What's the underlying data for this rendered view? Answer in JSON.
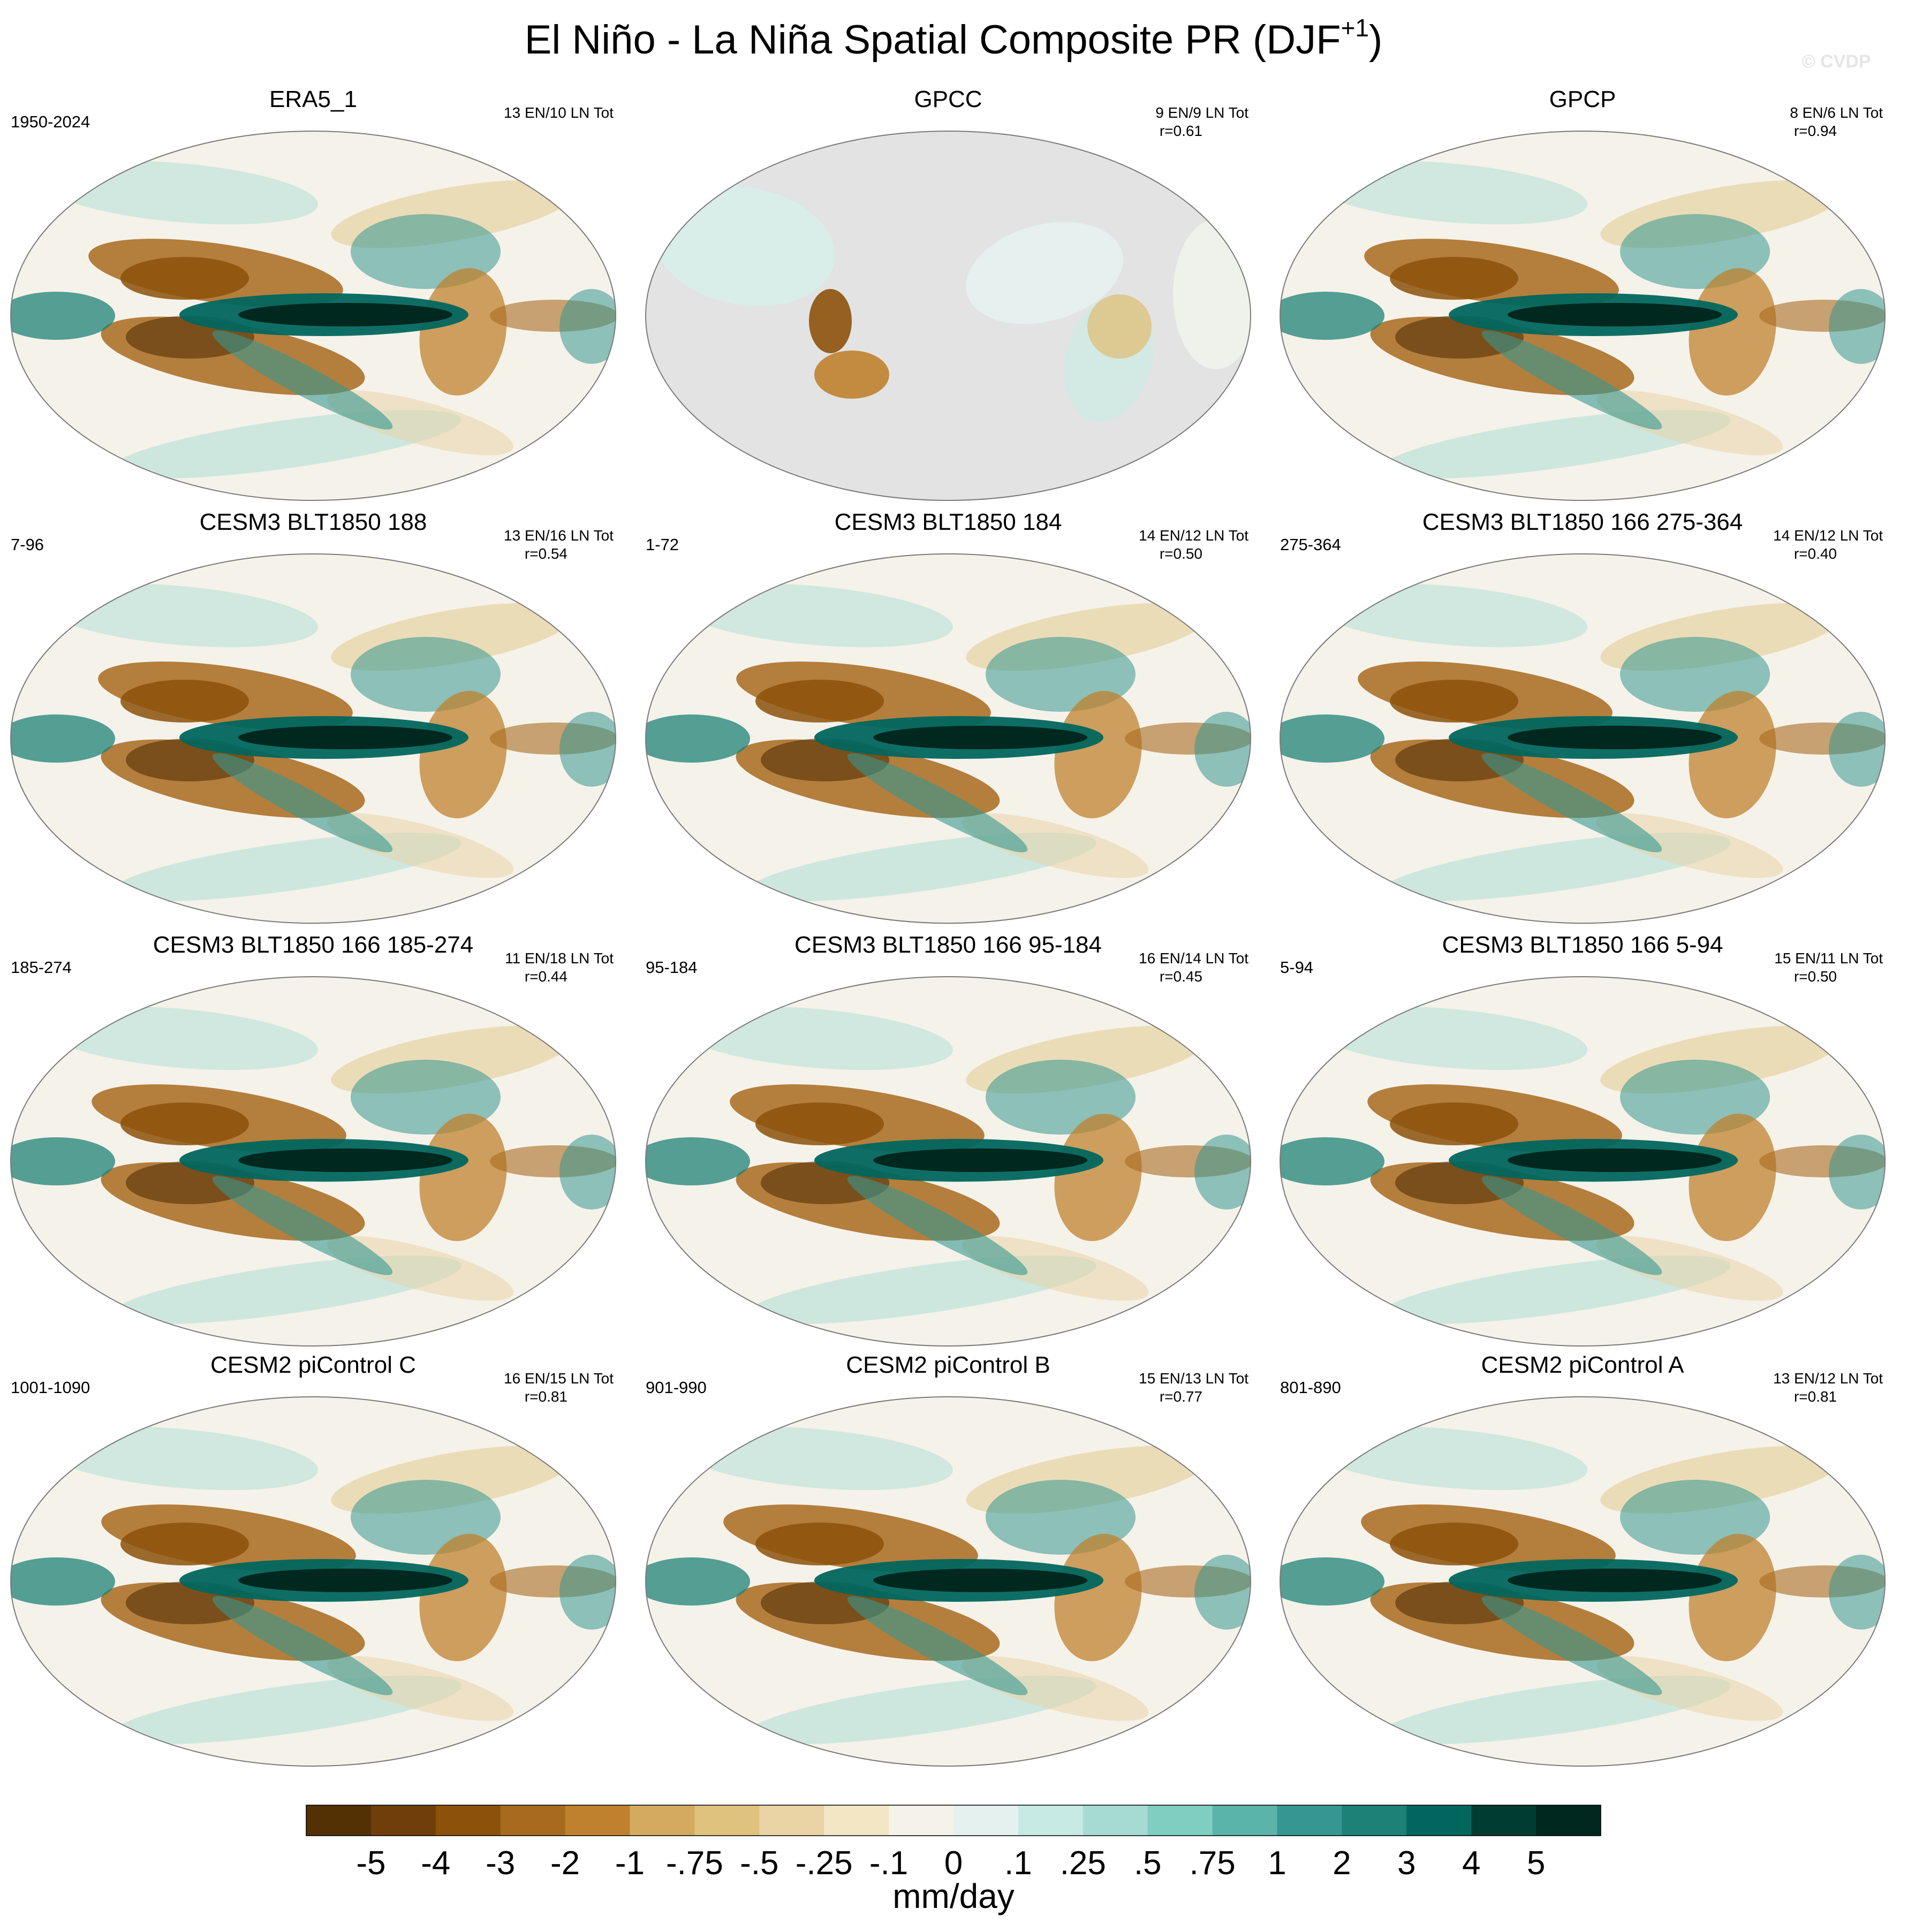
{
  "figure": {
    "title_main": "El Niño - La Niña Spatial Composite PR (DJF",
    "title_sup": "+1",
    "title_close": ")",
    "watermark": "© CVDP"
  },
  "chart_data": {
    "type": "heatmap",
    "title": "El Niño - La Niña Spatial Composite PR (DJF+1)",
    "variable": "PR",
    "season": "DJF+1",
    "units": "mm/day",
    "colorbar": {
      "label": "mm/day",
      "levels": [
        "-5",
        "-4",
        "-3",
        "-2",
        "-1",
        "-.75",
        "-.5",
        "-.25",
        "-.1",
        "0",
        ".1",
        ".25",
        ".5",
        ".75",
        "1",
        "2",
        "3",
        "4",
        "5"
      ],
      "colors": [
        "#543005",
        "#6f3e0a",
        "#8c510a",
        "#a86a1f",
        "#bf812d",
        "#d3aa60",
        "#dfc27d",
        "#ead4a5",
        "#f3e6c5",
        "#f5f2ea",
        "#e4f1ef",
        "#c7eae5",
        "#a5dbd3",
        "#80cdc1",
        "#5ab4a9",
        "#35978f",
        "#1e8177",
        "#01665e",
        "#003c30",
        "#00281f"
      ]
    },
    "panels": [
      {
        "name": "ERA5_1",
        "years": "1950-2024",
        "events": "13 EN/10 LN Tot",
        "r": ""
      },
      {
        "name": "GPCC",
        "years": "",
        "events": "9 EN/9 LN Tot",
        "r": "r=0.61"
      },
      {
        "name": "GPCP",
        "years": "",
        "events": "8 EN/6 LN Tot",
        "r": "r=0.94"
      },
      {
        "name": "CESM3 BLT1850 188",
        "years": "7-96",
        "events": "13 EN/16 LN Tot",
        "r": "r=0.54"
      },
      {
        "name": "CESM3 BLT1850 184",
        "years": "1-72",
        "events": "14 EN/12 LN Tot",
        "r": "r=0.50"
      },
      {
        "name": "CESM3 BLT1850 166 275-364",
        "years": "275-364",
        "events": "14 EN/12 LN Tot",
        "r": "r=0.40"
      },
      {
        "name": "CESM3 BLT1850 166 185-274",
        "years": "185-274",
        "events": "11 EN/18 LN Tot",
        "r": "r=0.44"
      },
      {
        "name": "CESM3 BLT1850 166 95-184",
        "years": "95-184",
        "events": "16 EN/14 LN Tot",
        "r": "r=0.45"
      },
      {
        "name": "CESM3 BLT1850 166 5-94",
        "years": "5-94",
        "events": "15 EN/11 LN Tot",
        "r": "r=0.50"
      },
      {
        "name": "CESM2 piControl C",
        "years": "1001-1090",
        "events": "16 EN/15 LN Tot",
        "r": "r=0.81"
      },
      {
        "name": "CESM2 piControl B",
        "years": "901-990",
        "events": "15 EN/13 LN Tot",
        "r": "r=0.77"
      },
      {
        "name": "CESM2 piControl A",
        "years": "801-890",
        "events": "13 EN/12 LN Tot",
        "r": "r=0.81"
      }
    ]
  }
}
